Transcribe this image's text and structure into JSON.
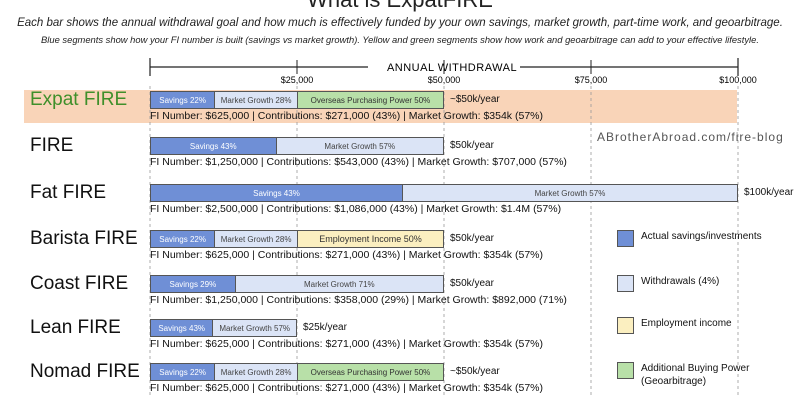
{
  "title": "What is ExpatFIRE",
  "subtitle_1": "Each bar shows the annual withdrawal goal and how much is effectively funded by your own savings, market growth, part-time work, and geoarbitrage.",
  "subtitle_2": "Blue segments show how your FI number is built (savings vs market growth). Yellow and green segments show how work and geoarbitrage can add to your effective lifestyle.",
  "credit": "ABrotherAbroad.com/fire-blog",
  "colors": {
    "savings": "#6f8fd6",
    "withdrawals": "#dbe4f6",
    "employment": "#fbefc0",
    "geoarbitrage": "#b8e0a8",
    "highlight": "#f8ccac",
    "highlight_text": "#3f8f2a"
  },
  "legend": {
    "savings": "Actual savings/investments",
    "withdrawals": "Withdrawals (4%)",
    "employment": "Employment income",
    "geo_line1": "Additional Buying Power",
    "geo_line2": "(Geoarbitrage)"
  },
  "chart_data": {
    "type": "bar",
    "orientation": "horizontal",
    "stacked": true,
    "axis_title": "ANNUAL WITHDRAWAL",
    "xlim": [
      0,
      100000
    ],
    "ticks": [
      {
        "value": 25000,
        "label": "$25,000"
      },
      {
        "value": 50000,
        "label": "$50,000"
      },
      {
        "value": 75000,
        "label": "$75,000"
      },
      {
        "value": 100000,
        "label": "$100,000"
      }
    ],
    "rows": [
      {
        "name": "Expat FIRE",
        "highlight": true,
        "withdrawal": "~$50k/year",
        "info": "FI Number: $625,000 | Contributions: $271,000 (43%) | Market Growth: $354k (57%)",
        "segments": [
          {
            "kind": "savings",
            "label": "Savings 22%",
            "value": 11000
          },
          {
            "kind": "market",
            "label": "Market Growth 28%",
            "value": 14000
          },
          {
            "kind": "geo",
            "label": "Overseas Purchasing Power 50%",
            "value": 25000
          }
        ]
      },
      {
        "name": "FIRE",
        "highlight": false,
        "withdrawal": "$50k/year",
        "info": "FI Number: $1,250,000 | Contributions: $543,000 (43%) | Market Growth: $707,000 (57%)",
        "segments": [
          {
            "kind": "savings",
            "label": "Savings 43%",
            "value": 21500
          },
          {
            "kind": "market",
            "label": "Market Growth 57%",
            "value": 28500
          }
        ]
      },
      {
        "name": "Fat FIRE",
        "highlight": false,
        "withdrawal": "$100k/year",
        "info": "FI Number: $2,500,000 | Contributions: $1,086,000 (43%) | Market Growth: $1.4M (57%)",
        "segments": [
          {
            "kind": "savings",
            "label": "Savings 43%",
            "value": 43000
          },
          {
            "kind": "market",
            "label": "Market Growth 57%",
            "value": 57000
          }
        ]
      },
      {
        "name": "Barista FIRE",
        "highlight": false,
        "withdrawal": "$50k/year",
        "info": "FI Number: $625,000 | Contributions: $271,000 (43%) | Market Growth: $354k (57%)",
        "segments": [
          {
            "kind": "savings",
            "label": "Savings 22%",
            "value": 11000
          },
          {
            "kind": "market",
            "label": "Market Growth 28%",
            "value": 14000
          },
          {
            "kind": "employment",
            "label": "Employment Income 50%",
            "value": 25000
          }
        ]
      },
      {
        "name": "Coast FIRE",
        "highlight": false,
        "withdrawal": "$50k/year",
        "info": "FI Number: $1,250,000 | Contributions: $358,000 (29%) | Market Growth: $892,000 (71%)",
        "segments": [
          {
            "kind": "savings",
            "label": "Savings 29%",
            "value": 14500
          },
          {
            "kind": "market",
            "label": "Market Growth 71%",
            "value": 35500
          }
        ]
      },
      {
        "name": "Lean FIRE",
        "highlight": false,
        "withdrawal": "$25k/year",
        "info": "FI Number: $625,000 | Contributions: $271,000 (43%) | Market Growth: $354k (57%)",
        "segments": [
          {
            "kind": "savings",
            "label": "Savings 43%",
            "value": 10750
          },
          {
            "kind": "market",
            "label": "Market Growth 57%",
            "value": 14250
          }
        ]
      },
      {
        "name": "Nomad FIRE",
        "highlight": false,
        "withdrawal": "~$50k/year",
        "info": "FI Number: $625,000 | Contributions: $271,000 (43%) | Market Growth: $354k (57%)",
        "segments": [
          {
            "kind": "savings",
            "label": "Savings 22%",
            "value": 11000
          },
          {
            "kind": "market",
            "label": "Market Growth 28%",
            "value": 14000
          },
          {
            "kind": "geo",
            "label": "Overseas Purchasing Power 50%",
            "value": 25000
          }
        ]
      }
    ]
  }
}
